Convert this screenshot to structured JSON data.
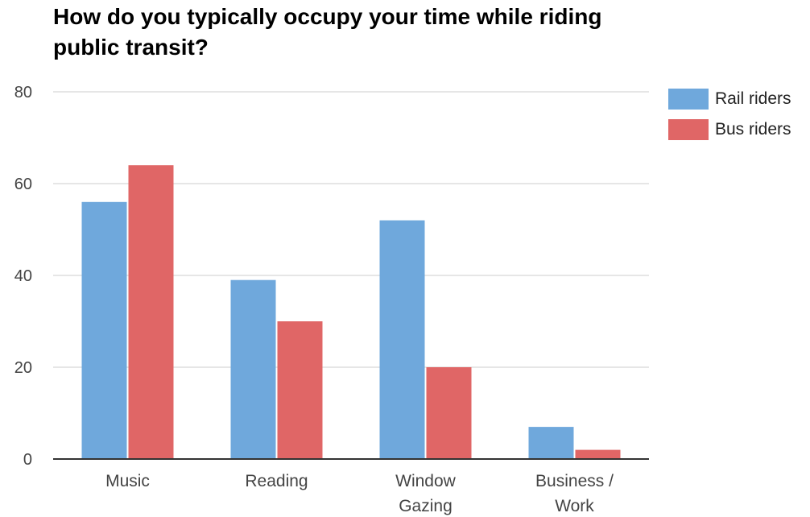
{
  "chart_data": {
    "type": "bar",
    "title": "How do you typically occupy your time while riding public transit?",
    "xlabel": "",
    "ylabel": "",
    "categories": [
      "Music",
      "Reading",
      "Window Gazing",
      "Business / Work"
    ],
    "category_lines": [
      [
        "Music"
      ],
      [
        "Reading"
      ],
      [
        "Window",
        "Gazing"
      ],
      [
        "Business /",
        "Work"
      ]
    ],
    "series": [
      {
        "name": "Rail riders",
        "color": "#6fa8dc",
        "values": [
          56,
          39,
          52,
          7
        ]
      },
      {
        "name": "Bus riders",
        "color": "#e06666",
        "values": [
          64,
          30,
          20,
          2
        ]
      }
    ],
    "ylim": [
      0,
      80
    ],
    "yticks": [
      0,
      20,
      40,
      60,
      80
    ],
    "grid": true,
    "legend_position": "top-right"
  }
}
